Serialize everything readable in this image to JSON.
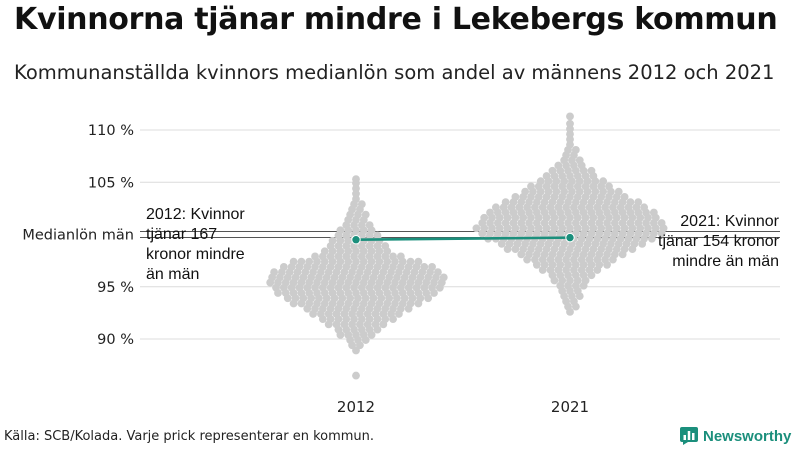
{
  "title": "Kvinnorna tjänar mindre i Lekebergs kommun",
  "subtitle": "Kommunanställda kvinnors medianlön som andel av männens 2012 och 2021",
  "source": "Källa: SCB/Kolada. Varje prick representerar en kommun.",
  "brand": "Newsworthy",
  "colors": {
    "dots": "#cccccc",
    "highlight": "#1b8f7c",
    "grid": "#dcdcdc",
    "reference": "#555555"
  },
  "chart_data": {
    "type": "scatter",
    "subtype": "beeswarm",
    "title": "Kvinnorna tjänar mindre i Lekebergs kommun",
    "xlabel": "",
    "ylabel": "",
    "categories": [
      "2012",
      "2021"
    ],
    "y_ticks": [
      90,
      95,
      105,
      110
    ],
    "y_tick_labels": [
      "90 %",
      "95 %",
      "105 %",
      "110 %"
    ],
    "ylim": [
      86,
      112
    ],
    "reference_line": {
      "label": "Medianlön män",
      "value": 100
    },
    "highlight": {
      "name": "Lekebergs kommun",
      "values": [
        99.5,
        99.7
      ]
    },
    "annotations": [
      {
        "category": "2012",
        "text": [
          "2012: Kvinnor",
          "tjänar 167",
          "kronor mindre",
          "än män"
        ]
      },
      {
        "category": "2021",
        "text": [
          "2021: Kvinnor",
          "tjänar 154 kronor",
          "mindre än män"
        ]
      }
    ],
    "distributions": [
      {
        "category": "2012",
        "min": 86.5,
        "max": 105.3,
        "median": 95.8,
        "counts": [
          [
            86.5,
            1
          ],
          [
            88.9,
            1
          ],
          [
            89.4,
            2
          ],
          [
            89.9,
            3
          ],
          [
            90.4,
            5
          ],
          [
            90.9,
            6
          ],
          [
            91.4,
            8
          ],
          [
            91.9,
            10
          ],
          [
            92.4,
            12
          ],
          [
            92.9,
            14
          ],
          [
            93.4,
            17
          ],
          [
            93.9,
            19
          ],
          [
            94.4,
            21
          ],
          [
            94.9,
            22
          ],
          [
            95.4,
            23
          ],
          [
            95.9,
            23
          ],
          [
            96.4,
            22
          ],
          [
            96.9,
            20
          ],
          [
            97.4,
            17
          ],
          [
            97.9,
            12
          ],
          [
            98.4,
            9
          ],
          [
            98.9,
            8
          ],
          [
            99.4,
            7
          ],
          [
            99.9,
            6
          ],
          [
            100.4,
            5
          ],
          [
            100.9,
            4
          ],
          [
            101.4,
            3
          ],
          [
            101.9,
            3
          ],
          [
            102.4,
            2
          ],
          [
            102.9,
            2
          ],
          [
            103.4,
            1
          ],
          [
            103.9,
            1
          ],
          [
            104.4,
            1
          ],
          [
            104.9,
            1
          ],
          [
            105.3,
            1
          ]
        ]
      },
      {
        "category": "2021",
        "min": 92.6,
        "max": 111.3,
        "median": 101.3,
        "counts": [
          [
            92.6,
            1
          ],
          [
            93.1,
            2
          ],
          [
            93.6,
            2
          ],
          [
            94.1,
            3
          ],
          [
            94.6,
            3
          ],
          [
            95.1,
            4
          ],
          [
            95.6,
            5
          ],
          [
            96.1,
            6
          ],
          [
            96.6,
            8
          ],
          [
            97.1,
            10
          ],
          [
            97.6,
            12
          ],
          [
            98.1,
            14
          ],
          [
            98.6,
            17
          ],
          [
            99.1,
            19
          ],
          [
            99.6,
            22
          ],
          [
            100.1,
            24
          ],
          [
            100.6,
            25
          ],
          [
            101.1,
            24
          ],
          [
            101.6,
            23
          ],
          [
            102.1,
            22
          ],
          [
            102.6,
            20
          ],
          [
            103.1,
            18
          ],
          [
            103.6,
            15
          ],
          [
            104.1,
            13
          ],
          [
            104.6,
            11
          ],
          [
            105.1,
            9
          ],
          [
            105.6,
            7
          ],
          [
            106.1,
            6
          ],
          [
            106.6,
            4
          ],
          [
            107.1,
            3
          ],
          [
            107.6,
            2
          ],
          [
            108.1,
            2
          ],
          [
            108.6,
            1
          ],
          [
            109.1,
            1
          ],
          [
            109.6,
            1
          ],
          [
            110.1,
            1
          ],
          [
            110.6,
            1
          ],
          [
            111.3,
            1
          ]
        ]
      }
    ]
  }
}
